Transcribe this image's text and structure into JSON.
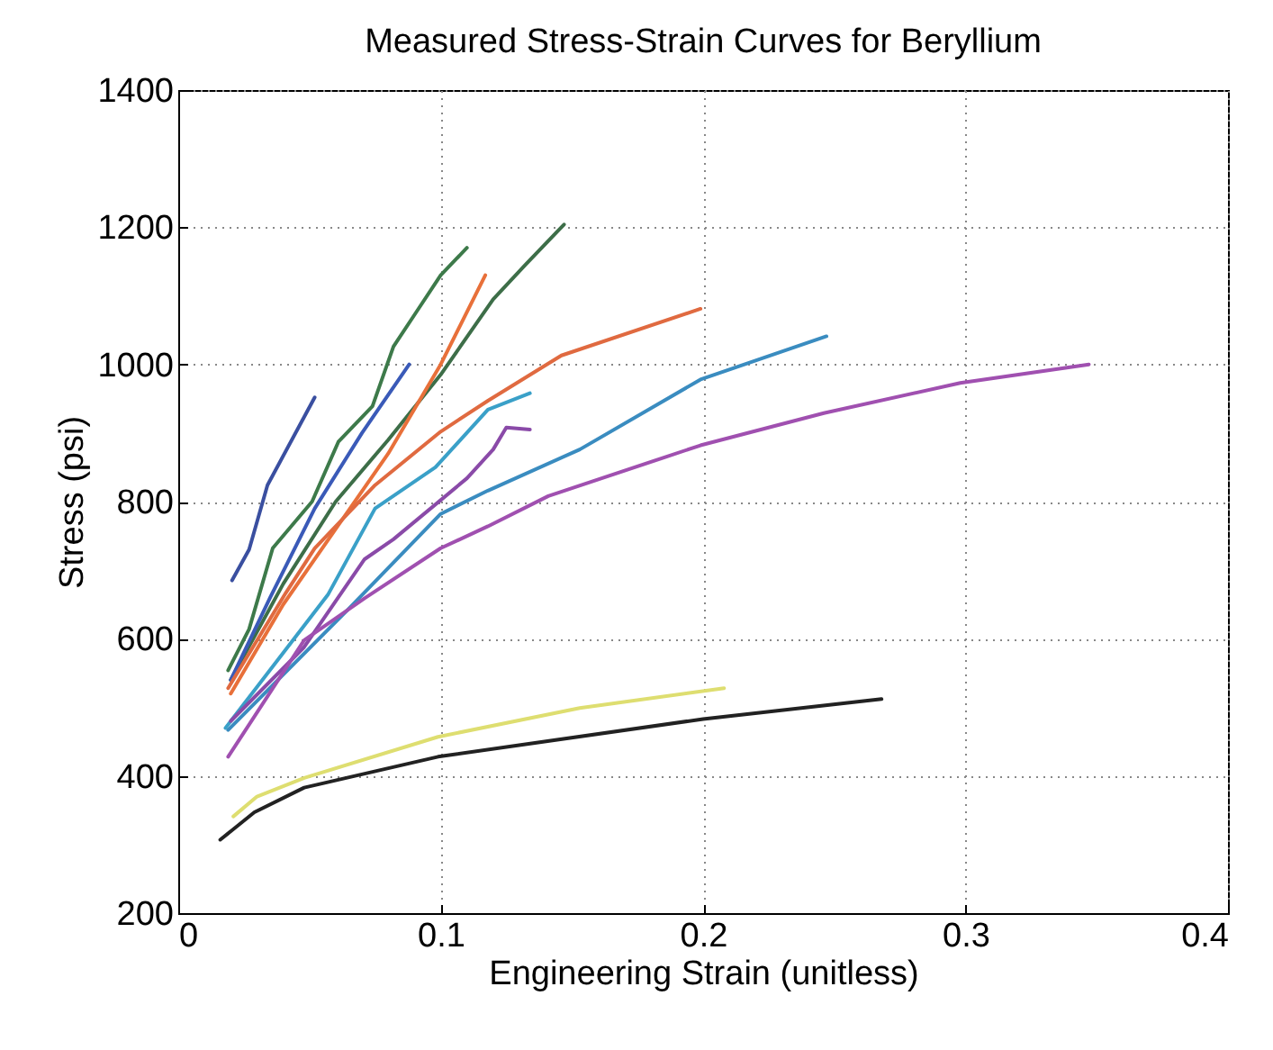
{
  "chart_data": {
    "type": "line",
    "title": "Measured Stress-Strain Curves for Beryllium",
    "xlabel": "Engineering Strain  (unitless)",
    "ylabel": "Stress (psi)",
    "xlim": [
      0,
      0.4
    ],
    "xticks": [
      0,
      0.1,
      0.2,
      0.3,
      0.4
    ],
    "ylim": [
      200,
      1400
    ],
    "yticks": [
      200,
      400,
      600,
      800,
      1000,
      1200,
      1400
    ],
    "grid": true,
    "legend": false,
    "line_style": "solid",
    "marker": "none",
    "series": [
      {
        "color": "#3a4fa0",
        "x": [
          0.0205,
          0.027,
          0.034,
          0.052
        ],
        "values": [
          685,
          730,
          824,
          952
        ]
      },
      {
        "color": "#3d7a4a",
        "x": [
          0.019,
          0.027,
          0.036,
          0.051,
          0.061,
          0.074,
          0.082,
          0.091,
          0.1,
          0.11
        ],
        "values": [
          554,
          614,
          732,
          800,
          887,
          939,
          1026,
          1078,
          1130,
          1170
        ]
      },
      {
        "color": "#3d6e48",
        "x": [
          0.02,
          0.04,
          0.06,
          0.08,
          0.1,
          0.12,
          0.132,
          0.147
        ],
        "values": [
          540,
          680,
          800,
          890,
          985,
          1095,
          1144,
          1204
        ]
      },
      {
        "color": "#3a5ab8",
        "x": [
          0.02,
          0.035,
          0.052,
          0.07,
          0.088
        ],
        "values": [
          540,
          660,
          790,
          900,
          1000
        ]
      },
      {
        "color": "#e8703a",
        "x": [
          0.02,
          0.04,
          0.06,
          0.08,
          0.1,
          0.117
        ],
        "values": [
          520,
          650,
          760,
          870,
          1000,
          1130
        ]
      },
      {
        "color": "#e06a40",
        "x": [
          0.019,
          0.041,
          0.052,
          0.075,
          0.1,
          0.118,
          0.146,
          0.199
        ],
        "values": [
          528,
          667,
          732,
          824,
          902,
          947,
          1013,
          1081
        ]
      },
      {
        "color": "#3aa0c8",
        "x": [
          0.018,
          0.057,
          0.075,
          0.098,
          0.118,
          0.134
        ],
        "values": [
          470,
          664,
          790,
          850,
          934,
          958
        ]
      },
      {
        "color": "#8a4aa8",
        "x": [
          0.02,
          0.048,
          0.071,
          0.082,
          0.11,
          0.12,
          0.125,
          0.134
        ],
        "values": [
          480,
          588,
          716,
          745,
          834,
          876,
          908,
          905
        ]
      },
      {
        "color": "#3a8cc0",
        "x": [
          0.019,
          0.064,
          0.1,
          0.118,
          0.153,
          0.199,
          0.247
        ],
        "values": [
          467,
          640,
          782,
          816,
          876,
          978,
          1041
        ]
      },
      {
        "color": "#a050b0",
        "x": [
          0.019,
          0.048,
          0.071,
          0.1,
          0.118,
          0.141,
          0.199,
          0.246,
          0.298,
          0.347
        ],
        "values": [
          428,
          598,
          659,
          732,
          764,
          808,
          882,
          929,
          973,
          1000
        ]
      },
      {
        "color": "#dede70",
        "x": [
          0.021,
          0.03,
          0.048,
          0.099,
          0.153,
          0.208
        ],
        "values": [
          341,
          370,
          397,
          457,
          499,
          528
        ]
      },
      {
        "color": "#222222",
        "x": [
          0.016,
          0.029,
          0.048,
          0.099,
          0.2,
          0.268
        ],
        "values": [
          307,
          347,
          383,
          428,
          483,
          512
        ]
      }
    ]
  }
}
